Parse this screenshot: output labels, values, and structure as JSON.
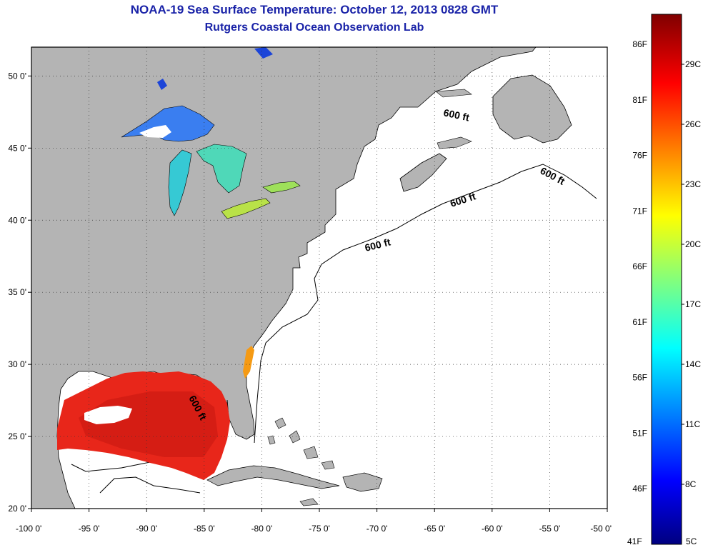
{
  "header": {
    "title": "NOAA-19 Sea Surface Temperature:  October 12, 2013 0828 GMT",
    "subtitle": "Rutgers Coastal Ocean Observation Lab"
  },
  "map": {
    "lon_range": [
      -100,
      -50
    ],
    "lat_range": [
      20,
      52
    ],
    "x_ticks": [
      "-100 0'",
      "-95 0'",
      "-90 0'",
      "-85 0'",
      "-80 0'",
      "-75 0'",
      "-70 0'",
      "-65 0'",
      "-60 0'",
      "-55 0'",
      "-50 0'"
    ],
    "y_ticks": [
      "20 0'",
      "25 0'",
      "30 0'",
      "35 0'",
      "40 0'",
      "45 0'",
      "50 0'"
    ],
    "contour_label": "600 ft",
    "land_color": "#b4b4b4",
    "ocean_color": "#ffffff"
  },
  "colorbar": {
    "min_label_f": "41F",
    "min_label_c": "5C",
    "f_labels": [
      "86F",
      "81F",
      "76F",
      "71F",
      "66F",
      "61F",
      "56F",
      "51F",
      "46F"
    ],
    "c_labels": [
      "29C",
      "26C",
      "23C",
      "20C",
      "17C",
      "14C",
      "11C",
      "8C"
    ],
    "colors": [
      "#000080",
      "#0000ff",
      "#00ffff",
      "#ffff00",
      "#ff0000",
      "#800000"
    ]
  }
}
